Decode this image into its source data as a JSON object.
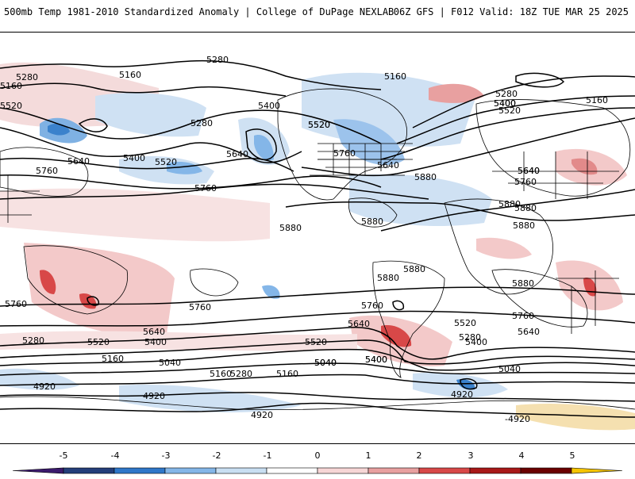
{
  "header": {
    "left_title": "500mb Temp 1981-2010 Standardized Anomaly | College of DuPage NEXLAB",
    "right_title": "06Z GFS | F012 Valid: 18Z TUE MAR 25 2025"
  },
  "map": {
    "contour_labels": [
      "5280",
      "5160",
      "5280",
      "5520",
      "5160",
      "5280",
      "5640",
      "5400",
      "5520",
      "5760",
      "5640",
      "5400",
      "5520",
      "5640",
      "5760",
      "5400",
      "5520",
      "5760",
      "5640",
      "5880",
      "5160",
      "5520",
      "5400",
      "5280",
      "5160",
      "5640",
      "5760",
      "5880",
      "5880",
      "5880",
      "5880",
      "5880",
      "5880",
      "5880",
      "5880",
      "5760",
      "5760",
      "5760",
      "5760",
      "5640",
      "5640",
      "5280",
      "5520",
      "5400",
      "5160",
      "5520",
      "5640",
      "5400",
      "5400",
      "5520",
      "5280",
      "5160",
      "5040",
      "5160",
      "5280",
      "5040",
      "5400",
      "5040",
      "5040",
      "4920",
      "4920",
      "4920",
      "4920",
      "-4920"
    ]
  },
  "colorbar": {
    "tick_labels": [
      "-5",
      "-4",
      "-3",
      "-2",
      "-1",
      "0",
      "1",
      "2",
      "3",
      "4",
      "5"
    ],
    "colors": [
      "#3b1a6d",
      "#243e7a",
      "#2f77c9",
      "#84b6e8",
      "#c9dff2",
      "#ffffff",
      "#f7d6d6",
      "#e8a0a0",
      "#d84848",
      "#a81818",
      "#6b0000",
      "#f5c400"
    ]
  }
}
